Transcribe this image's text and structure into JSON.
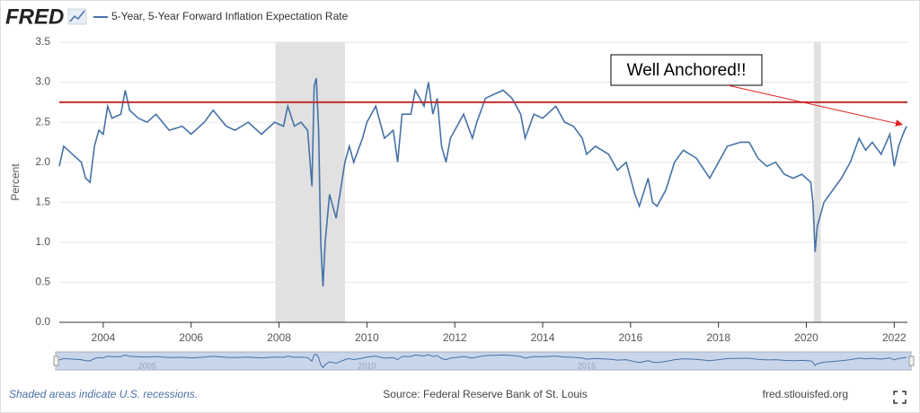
{
  "logo": "FRED",
  "chart_data": {
    "type": "line",
    "series": [
      {
        "name": "5-Year, 5-Year Forward Inflation Expectation Rate",
        "color": "#4572a7",
        "values": [
          1.95,
          2.2,
          2.1,
          2.0,
          1.8,
          1.75,
          2.2,
          2.4,
          2.35,
          2.7,
          2.55,
          2.6,
          2.9,
          2.65,
          2.55,
          2.5,
          2.6,
          2.4,
          2.45,
          2.35,
          2.5,
          2.65,
          2.45,
          2.4,
          2.5,
          2.35,
          2.5,
          2.45,
          2.7,
          2.45,
          2.5,
          2.4,
          1.7,
          2.95,
          3.05,
          2.4,
          1.0,
          0.45,
          1.0,
          1.6,
          1.3,
          2.0,
          2.2,
          2.0,
          2.3,
          2.5,
          2.7,
          2.3,
          2.4,
          2.0,
          2.6,
          2.6,
          2.9,
          2.7,
          3.0,
          2.6,
          2.8,
          2.2,
          2.0,
          2.3,
          2.4,
          2.6,
          2.3,
          2.5,
          2.8,
          2.85,
          2.9,
          2.8,
          2.6,
          2.3,
          2.6,
          2.55,
          2.7,
          2.5,
          2.45,
          2.3,
          2.1,
          2.2,
          2.1,
          1.9,
          2.0,
          1.6,
          1.45,
          1.8,
          1.5,
          1.45,
          1.65,
          2.0,
          2.15,
          2.05,
          1.8,
          2.0,
          2.2,
          2.25,
          2.25,
          2.05,
          1.95,
          2.0,
          1.85,
          1.8,
          1.85,
          1.75,
          1.5,
          0.88,
          1.2,
          1.5,
          1.65,
          1.8,
          2.0,
          2.3,
          2.15,
          2.25,
          2.1,
          2.35,
          1.95,
          2.2,
          2.35,
          2.45
        ]
      }
    ],
    "x": [
      2003.0,
      2003.1,
      2003.3,
      2003.5,
      2003.6,
      2003.7,
      2003.8,
      2003.9,
      2004.0,
      2004.1,
      2004.2,
      2004.4,
      2004.5,
      2004.6,
      2004.8,
      2005.0,
      2005.2,
      2005.5,
      2005.8,
      2006.0,
      2006.3,
      2006.5,
      2006.8,
      2007.0,
      2007.3,
      2007.6,
      2007.9,
      2008.1,
      2008.2,
      2008.35,
      2008.5,
      2008.65,
      2008.75,
      2008.8,
      2008.85,
      2008.9,
      2008.95,
      2009.0,
      2009.05,
      2009.15,
      2009.3,
      2009.5,
      2009.6,
      2009.7,
      2009.9,
      2010.0,
      2010.2,
      2010.4,
      2010.6,
      2010.7,
      2010.8,
      2011.0,
      2011.1,
      2011.3,
      2011.4,
      2011.5,
      2011.6,
      2011.7,
      2011.8,
      2011.9,
      2012.0,
      2012.2,
      2012.4,
      2012.5,
      2012.7,
      2012.9,
      2013.1,
      2013.3,
      2013.5,
      2013.6,
      2013.8,
      2014.0,
      2014.3,
      2014.5,
      2014.7,
      2014.9,
      2015.0,
      2015.2,
      2015.5,
      2015.7,
      2015.9,
      2016.1,
      2016.2,
      2016.4,
      2016.5,
      2016.6,
      2016.8,
      2017.0,
      2017.2,
      2017.5,
      2017.8,
      2018.0,
      2018.2,
      2018.5,
      2018.7,
      2018.9,
      2019.1,
      2019.3,
      2019.5,
      2019.7,
      2019.9,
      2020.1,
      2020.15,
      2020.2,
      2020.25,
      2020.4,
      2020.6,
      2020.8,
      2021.0,
      2021.2,
      2021.35,
      2021.5,
      2021.7,
      2021.9,
      2022.0,
      2022.1,
      2022.2,
      2022.28
    ],
    "xlim": [
      2003.0,
      2022.3
    ],
    "xticks": [
      2004,
      2006,
      2008,
      2010,
      2012,
      2014,
      2016,
      2018,
      2020,
      2022
    ],
    "ylim": [
      0,
      3.5
    ],
    "yticks": [
      {
        "value": 0,
        "label": "0.0"
      },
      0.5,
      {
        "value": 1,
        "label": "1.0"
      },
      1.5,
      {
        "value": 2,
        "label": "2.0"
      },
      2.5,
      {
        "value": 3,
        "label": "3.0"
      },
      3.5
    ],
    "ylabel": "Percent",
    "grid": true,
    "recessions": [
      [
        2007.92,
        2009.5
      ],
      [
        2020.17,
        2020.33
      ]
    ],
    "reference_line": {
      "value": 2.75,
      "color": "#c0302f"
    },
    "annotation": {
      "text": "Well Anchored!!",
      "x": 2022.2,
      "y": 2.47
    },
    "navigator_ticks": [
      2005,
      2010,
      2015
    ],
    "note": "Shaded areas indicate U.S. recessions.",
    "source": "Source: Federal Reserve Bank of St. Louis",
    "site": "fred.stlouisfed.org"
  }
}
